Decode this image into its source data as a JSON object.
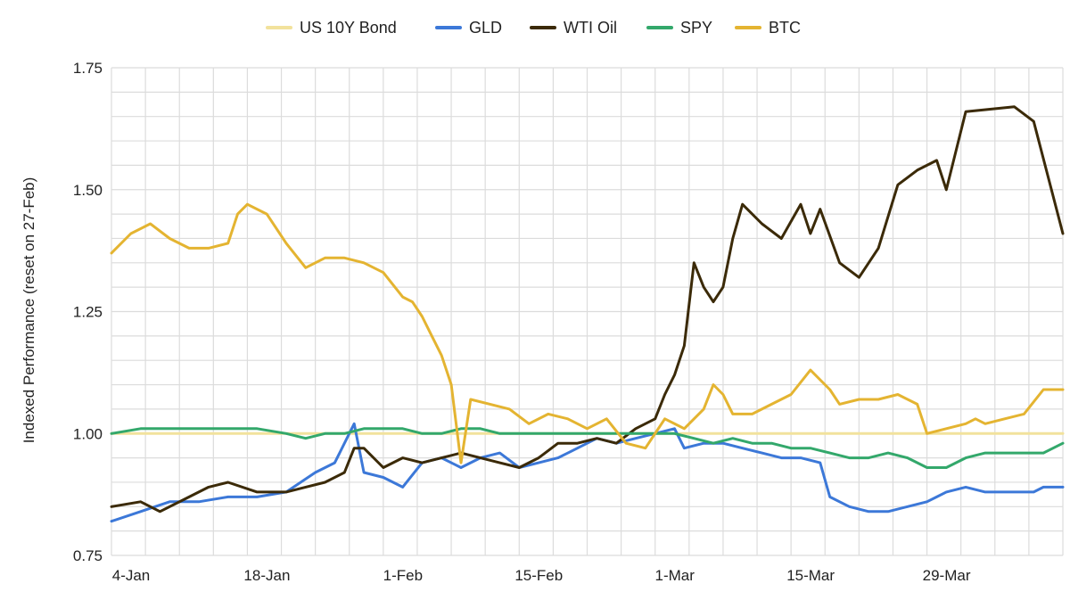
{
  "chart_data": {
    "type": "line",
    "ylabel": "Indexed Performance (reset on 27-Feb)",
    "xlabel": "",
    "ylim": [
      0.75,
      1.75
    ],
    "yticks": [
      "0.75",
      "1.00",
      "1.25",
      "1.50",
      "1.75"
    ],
    "xlim": [
      0,
      98
    ],
    "xticks": [
      {
        "label": "4-Jan",
        "x": 0
      },
      {
        "label": "18-Jan",
        "x": 14
      },
      {
        "label": "1-Feb",
        "x": 28
      },
      {
        "label": "15-Feb",
        "x": 42
      },
      {
        "label": "1-Mar",
        "x": 56
      },
      {
        "label": "15-Mar",
        "x": 70
      },
      {
        "label": "29-Mar",
        "x": 84
      }
    ],
    "grid": true,
    "legend_position": "top",
    "series": [
      {
        "name": "US 10Y Bond",
        "color": "#f2e29c",
        "points": [
          [
            0,
            1.0
          ],
          [
            98,
            1.0
          ]
        ]
      },
      {
        "name": "GLD",
        "color": "#3c78d8",
        "points": [
          [
            0,
            0.82
          ],
          [
            3,
            0.84
          ],
          [
            6,
            0.86
          ],
          [
            9,
            0.86
          ],
          [
            12,
            0.87
          ],
          [
            15,
            0.87
          ],
          [
            18,
            0.88
          ],
          [
            21,
            0.92
          ],
          [
            23,
            0.94
          ],
          [
            25,
            1.02
          ],
          [
            26,
            0.92
          ],
          [
            28,
            0.91
          ],
          [
            30,
            0.89
          ],
          [
            32,
            0.94
          ],
          [
            34,
            0.95
          ],
          [
            36,
            0.93
          ],
          [
            38,
            0.95
          ],
          [
            40,
            0.96
          ],
          [
            42,
            0.93
          ],
          [
            44,
            0.94
          ],
          [
            46,
            0.95
          ],
          [
            48,
            0.97
          ],
          [
            50,
            0.99
          ],
          [
            52,
            0.98
          ],
          [
            54,
            0.99
          ],
          [
            56,
            1.0
          ],
          [
            58,
            1.01
          ],
          [
            59,
            0.97
          ],
          [
            61,
            0.98
          ],
          [
            63,
            0.98
          ],
          [
            65,
            0.97
          ],
          [
            67,
            0.96
          ],
          [
            69,
            0.95
          ],
          [
            71,
            0.95
          ],
          [
            73,
            0.94
          ],
          [
            74,
            0.87
          ],
          [
            76,
            0.85
          ],
          [
            78,
            0.84
          ],
          [
            80,
            0.84
          ],
          [
            82,
            0.85
          ],
          [
            84,
            0.86
          ],
          [
            85,
            0.87
          ],
          [
            86,
            0.88
          ],
          [
            88,
            0.89
          ],
          [
            90,
            0.88
          ],
          [
            93,
            0.88
          ],
          [
            95,
            0.88
          ],
          [
            96,
            0.89
          ],
          [
            98,
            0.89
          ]
        ]
      },
      {
        "name": "WTI Oil",
        "color": "#3b2a08",
        "points": [
          [
            0,
            0.85
          ],
          [
            3,
            0.86
          ],
          [
            5,
            0.84
          ],
          [
            8,
            0.87
          ],
          [
            10,
            0.89
          ],
          [
            12,
            0.9
          ],
          [
            15,
            0.88
          ],
          [
            18,
            0.88
          ],
          [
            20,
            0.89
          ],
          [
            22,
            0.9
          ],
          [
            24,
            0.92
          ],
          [
            25,
            0.97
          ],
          [
            26,
            0.97
          ],
          [
            28,
            0.93
          ],
          [
            30,
            0.95
          ],
          [
            32,
            0.94
          ],
          [
            34,
            0.95
          ],
          [
            36,
            0.96
          ],
          [
            38,
            0.95
          ],
          [
            40,
            0.94
          ],
          [
            42,
            0.93
          ],
          [
            44,
            0.95
          ],
          [
            46,
            0.98
          ],
          [
            48,
            0.98
          ],
          [
            50,
            0.99
          ],
          [
            52,
            0.98
          ],
          [
            54,
            1.01
          ],
          [
            56,
            1.03
          ],
          [
            57,
            1.08
          ],
          [
            58,
            1.12
          ],
          [
            59,
            1.18
          ],
          [
            60,
            1.35
          ],
          [
            61,
            1.3
          ],
          [
            62,
            1.27
          ],
          [
            63,
            1.3
          ],
          [
            64,
            1.4
          ],
          [
            65,
            1.47
          ],
          [
            67,
            1.43
          ],
          [
            69,
            1.4
          ],
          [
            71,
            1.47
          ],
          [
            72,
            1.41
          ],
          [
            73,
            1.46
          ],
          [
            75,
            1.35
          ],
          [
            77,
            1.32
          ],
          [
            79,
            1.38
          ],
          [
            81,
            1.51
          ],
          [
            83,
            1.54
          ],
          [
            85,
            1.56
          ],
          [
            86,
            1.5
          ],
          [
            88,
            1.66
          ],
          [
            93,
            1.67
          ],
          [
            95,
            1.64
          ],
          [
            98,
            1.41
          ]
        ]
      },
      {
        "name": "SPY",
        "color": "#33a86b",
        "points": [
          [
            0,
            1.0
          ],
          [
            3,
            1.01
          ],
          [
            6,
            1.01
          ],
          [
            9,
            1.01
          ],
          [
            12,
            1.01
          ],
          [
            15,
            1.01
          ],
          [
            18,
            1.0
          ],
          [
            20,
            0.99
          ],
          [
            22,
            1.0
          ],
          [
            24,
            1.0
          ],
          [
            26,
            1.01
          ],
          [
            28,
            1.01
          ],
          [
            30,
            1.01
          ],
          [
            32,
            1.0
          ],
          [
            34,
            1.0
          ],
          [
            36,
            1.01
          ],
          [
            38,
            1.01
          ],
          [
            40,
            1.0
          ],
          [
            42,
            1.0
          ],
          [
            44,
            1.0
          ],
          [
            46,
            1.0
          ],
          [
            48,
            1.0
          ],
          [
            50,
            1.0
          ],
          [
            52,
            1.0
          ],
          [
            54,
            1.0
          ],
          [
            56,
            1.0
          ],
          [
            58,
            1.0
          ],
          [
            60,
            0.99
          ],
          [
            62,
            0.98
          ],
          [
            64,
            0.99
          ],
          [
            66,
            0.98
          ],
          [
            68,
            0.98
          ],
          [
            70,
            0.97
          ],
          [
            72,
            0.97
          ],
          [
            74,
            0.96
          ],
          [
            76,
            0.95
          ],
          [
            78,
            0.95
          ],
          [
            80,
            0.96
          ],
          [
            82,
            0.95
          ],
          [
            84,
            0.93
          ],
          [
            86,
            0.93
          ],
          [
            88,
            0.95
          ],
          [
            90,
            0.96
          ],
          [
            92,
            0.96
          ],
          [
            94,
            0.96
          ],
          [
            96,
            0.96
          ],
          [
            98,
            0.98
          ]
        ]
      },
      {
        "name": "BTC",
        "color": "#e4b431",
        "points": [
          [
            0,
            1.37
          ],
          [
            2,
            1.41
          ],
          [
            4,
            1.43
          ],
          [
            6,
            1.4
          ],
          [
            8,
            1.38
          ],
          [
            10,
            1.38
          ],
          [
            12,
            1.39
          ],
          [
            13,
            1.45
          ],
          [
            14,
            1.47
          ],
          [
            16,
            1.45
          ],
          [
            18,
            1.39
          ],
          [
            20,
            1.34
          ],
          [
            22,
            1.36
          ],
          [
            24,
            1.36
          ],
          [
            26,
            1.35
          ],
          [
            28,
            1.33
          ],
          [
            30,
            1.28
          ],
          [
            31,
            1.27
          ],
          [
            32,
            1.24
          ],
          [
            33,
            1.2
          ],
          [
            34,
            1.16
          ],
          [
            35,
            1.1
          ],
          [
            36,
            0.94
          ],
          [
            37,
            1.07
          ],
          [
            39,
            1.06
          ],
          [
            41,
            1.05
          ],
          [
            43,
            1.02
          ],
          [
            45,
            1.04
          ],
          [
            47,
            1.03
          ],
          [
            49,
            1.01
          ],
          [
            51,
            1.03
          ],
          [
            53,
            0.98
          ],
          [
            55,
            0.97
          ],
          [
            57,
            1.03
          ],
          [
            59,
            1.01
          ],
          [
            61,
            1.05
          ],
          [
            62,
            1.1
          ],
          [
            63,
            1.08
          ],
          [
            64,
            1.04
          ],
          [
            66,
            1.04
          ],
          [
            68,
            1.06
          ],
          [
            70,
            1.08
          ],
          [
            72,
            1.13
          ],
          [
            74,
            1.09
          ],
          [
            75,
            1.06
          ],
          [
            77,
            1.07
          ],
          [
            79,
            1.07
          ],
          [
            81,
            1.08
          ],
          [
            83,
            1.06
          ],
          [
            84,
            1.0
          ],
          [
            86,
            1.01
          ],
          [
            88,
            1.02
          ],
          [
            89,
            1.03
          ],
          [
            90,
            1.02
          ],
          [
            92,
            1.03
          ],
          [
            94,
            1.04
          ],
          [
            96,
            1.09
          ],
          [
            98,
            1.09
          ]
        ]
      }
    ]
  }
}
